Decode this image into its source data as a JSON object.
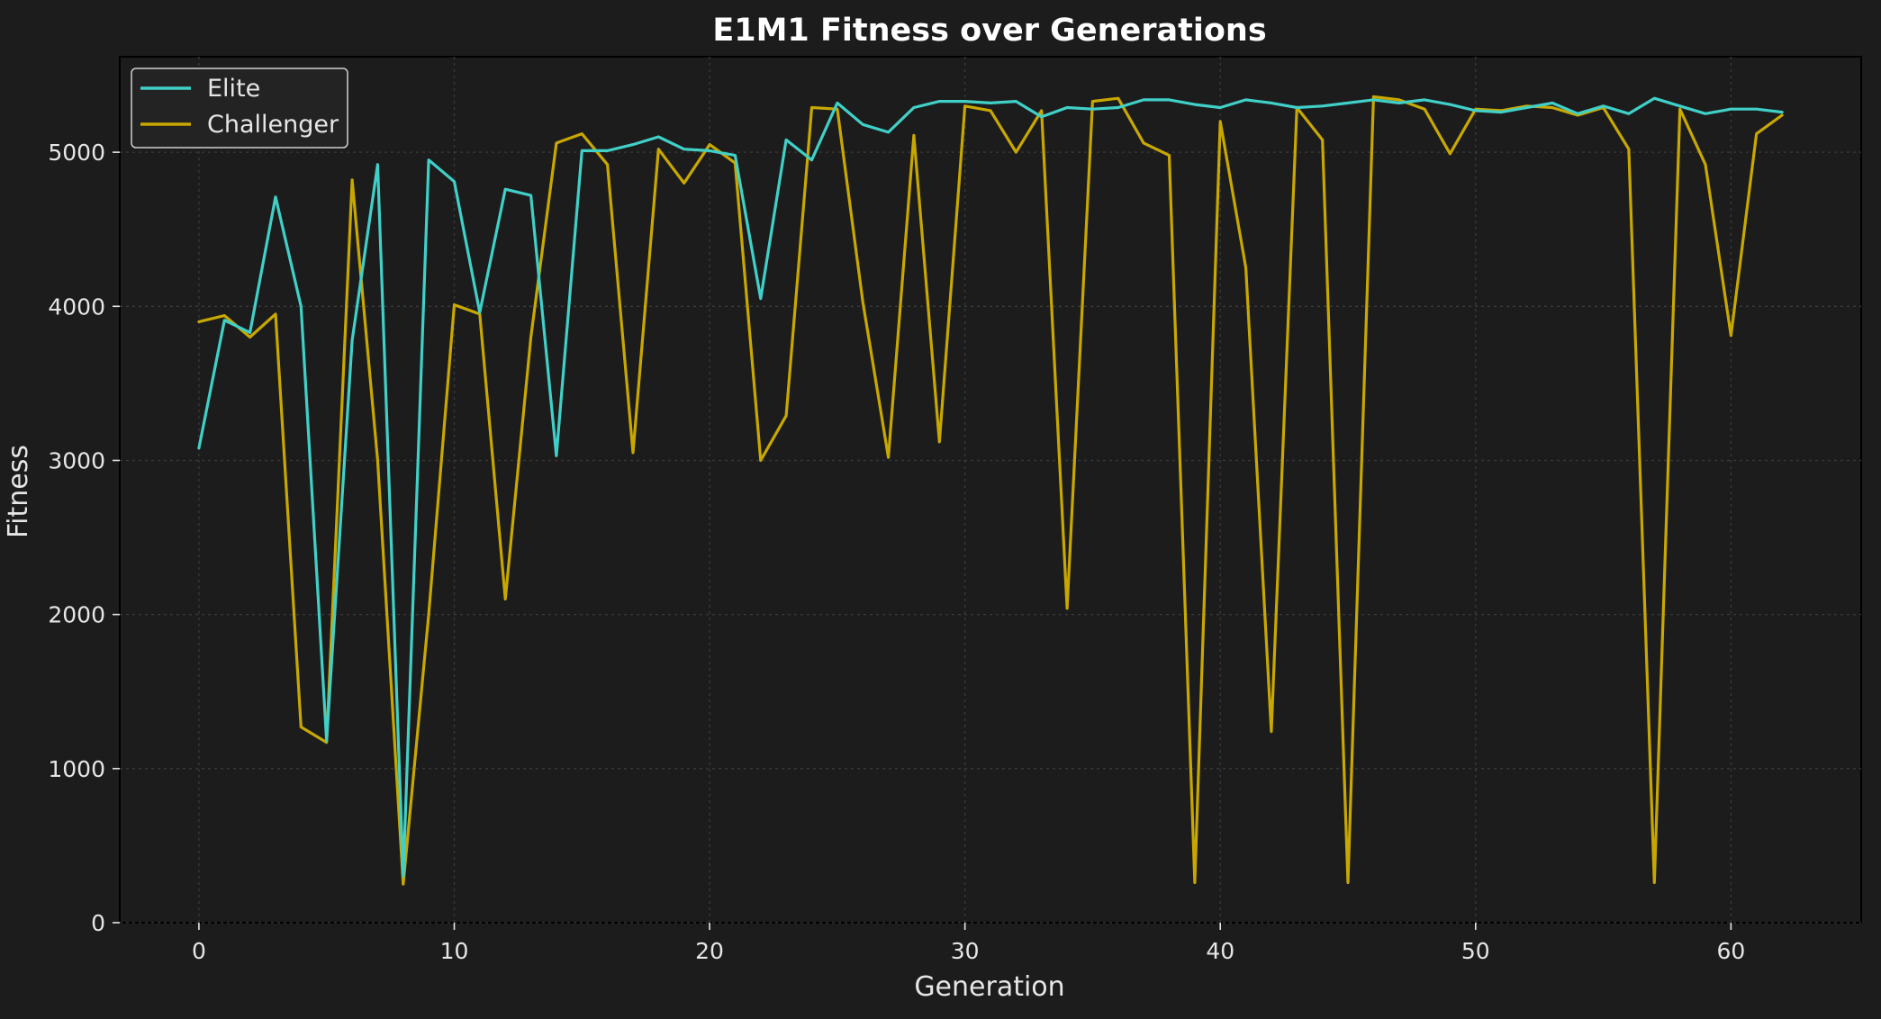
{
  "chart_data": {
    "type": "line",
    "title": "E1M1 Fitness over Generations",
    "xlabel": "Generation",
    "ylabel": "Fitness",
    "xlim": [
      -3.1,
      65.1
    ],
    "ylim": [
      0,
      5620
    ],
    "xticks": [
      0,
      10,
      20,
      30,
      40,
      50,
      60
    ],
    "yticks": [
      0,
      1000,
      2000,
      3000,
      4000,
      5000
    ],
    "grid": true,
    "legend": "top-left",
    "x": [
      0,
      1,
      2,
      3,
      4,
      5,
      6,
      7,
      8,
      9,
      10,
      11,
      12,
      13,
      14,
      15,
      16,
      17,
      18,
      19,
      20,
      21,
      22,
      23,
      24,
      25,
      26,
      27,
      28,
      29,
      30,
      31,
      32,
      33,
      34,
      35,
      36,
      37,
      38,
      39,
      40,
      41,
      42,
      43,
      44,
      45,
      46,
      47,
      48,
      49,
      50,
      51,
      52,
      53,
      54,
      55,
      56,
      57,
      58,
      59,
      60,
      61,
      62
    ],
    "series": [
      {
        "name": "Elite",
        "color": "#40d0c8",
        "values": [
          3080,
          3910,
          3830,
          4710,
          4000,
          1180,
          3780,
          4920,
          300,
          4950,
          4810,
          3960,
          4760,
          4720,
          3030,
          5010,
          5010,
          5050,
          5100,
          5020,
          5010,
          4980,
          4050,
          5080,
          4950,
          5320,
          5180,
          5130,
          5290,
          5330,
          5330,
          5320,
          5330,
          5230,
          5290,
          5280,
          5290,
          5340,
          5340,
          5310,
          5290,
          5340,
          5320,
          5290,
          5300,
          5320,
          5340,
          5320,
          5340,
          5310,
          5270,
          5260,
          5290,
          5320,
          5250,
          5300,
          5250,
          5350,
          5300,
          5250,
          5280,
          5280,
          5260
        ]
      },
      {
        "name": "Challenger",
        "color": "#c8a800",
        "values": [
          3900,
          3940,
          3800,
          3950,
          1270,
          1170,
          4820,
          3000,
          250,
          2000,
          4010,
          3950,
          2100,
          3800,
          5060,
          5120,
          4920,
          3050,
          5020,
          4800,
          5050,
          4930,
          3000,
          3290,
          5290,
          5280,
          4030,
          3020,
          5110,
          3120,
          5300,
          5270,
          5000,
          5270,
          2040,
          5330,
          5350,
          5060,
          4980,
          260,
          5200,
          4250,
          1240,
          5290,
          5080,
          260,
          5360,
          5340,
          5280,
          4990,
          5280,
          5270,
          5300,
          5290,
          5240,
          5290,
          5020,
          260,
          5280,
          4920,
          3810,
          5120,
          5240
        ]
      }
    ]
  }
}
